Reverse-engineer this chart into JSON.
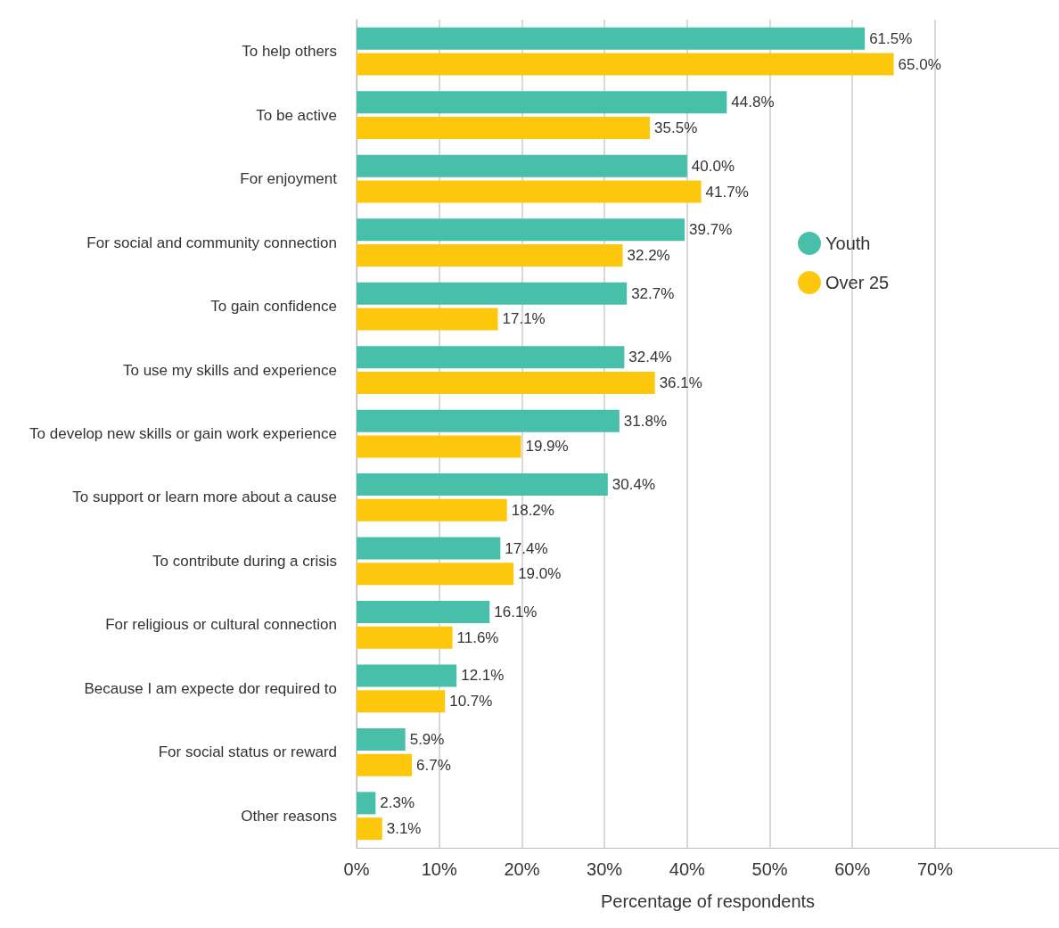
{
  "chart_data": {
    "type": "bar",
    "orientation": "horizontal",
    "xlabel": "Percentage of respondents",
    "categories": [
      "To help others",
      "To be active",
      "For enjoyment",
      "For social and community connection",
      "To gain confidence",
      "To use my skills and experience",
      "To develop new skills or gain work experience",
      "To support or learn more about a cause",
      "To contribute during a crisis",
      "For religious or cultural connection",
      "Because I am expecte dor required to",
      "For social status or reward",
      "Other reasons"
    ],
    "series": [
      {
        "name": "Youth",
        "color": "#48bfa9",
        "values": [
          61.5,
          44.8,
          40.0,
          39.7,
          32.7,
          32.4,
          31.8,
          30.4,
          17.4,
          16.1,
          12.1,
          5.9,
          2.3
        ],
        "value_labels": [
          "61.5%",
          "44.8%",
          "40.0%",
          "39.7%",
          "32.7%",
          "32.4%",
          "31.8%",
          "30.4%",
          "17.4%",
          "16.1%",
          "12.1%",
          "5.9%",
          "2.3%"
        ]
      },
      {
        "name": "Over 25",
        "color": "#fdc80c",
        "values": [
          65.0,
          35.5,
          41.7,
          32.2,
          17.1,
          36.1,
          19.9,
          18.2,
          19.0,
          11.6,
          10.7,
          6.7,
          3.1
        ],
        "value_labels": [
          "65.0%",
          "35.5%",
          "41.7%",
          "32.2%",
          "17.1%",
          "36.1%",
          "19.9%",
          "18.2%",
          "19.0%",
          "11.6%",
          "10.7%",
          "6.7%",
          "3.1%"
        ]
      }
    ],
    "xlim": [
      0,
      85
    ],
    "xticks": [
      {
        "value": 0,
        "label": "0%"
      },
      {
        "value": 10,
        "label": "10%"
      },
      {
        "value": 20,
        "label": "20%"
      },
      {
        "value": 30,
        "label": "30%"
      },
      {
        "value": 40,
        "label": "40%"
      },
      {
        "value": 50,
        "label": "50%"
      },
      {
        "value": 60,
        "label": "60%"
      },
      {
        "value": 70,
        "label": "70%"
      }
    ],
    "grid": "x",
    "legend": "right"
  }
}
